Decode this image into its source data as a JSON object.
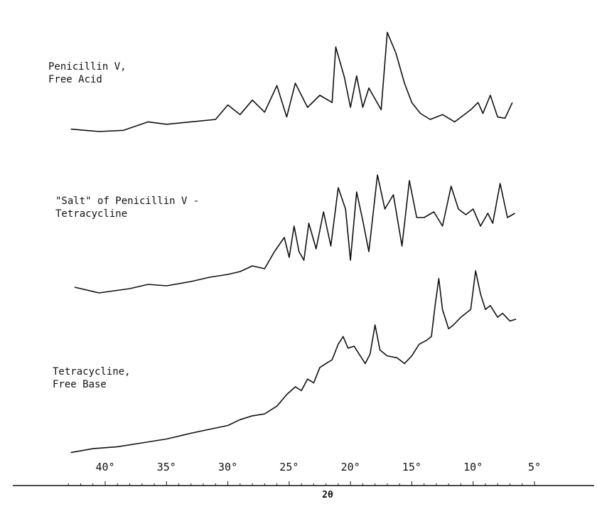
{
  "chart_data": {
    "type": "line",
    "title": "",
    "xlabel": "2θ",
    "ylabel": "",
    "xlim": [
      43,
      5
    ],
    "x_reversed": true,
    "x_ticks": [
      40,
      35,
      30,
      25,
      20,
      15,
      10,
      5
    ],
    "x_tick_labels": [
      "40°",
      "35°",
      "30°",
      "25°",
      "20°",
      "15°",
      "10°",
      "5°"
    ],
    "grid": false,
    "series": [
      {
        "name": "Penicillin V, Free Acid",
        "label_lines": [
          "Penicillin V,",
          "Free Acid"
        ],
        "points": [
          [
            42.8,
            2
          ],
          [
            40.5,
            0
          ],
          [
            38.5,
            1
          ],
          [
            36.5,
            8
          ],
          [
            35,
            6
          ],
          [
            33,
            8
          ],
          [
            31,
            10
          ],
          [
            30,
            22
          ],
          [
            29,
            14
          ],
          [
            28,
            26
          ],
          [
            27,
            16
          ],
          [
            26,
            38
          ],
          [
            25.2,
            12
          ],
          [
            24.5,
            40
          ],
          [
            23.5,
            20
          ],
          [
            22.5,
            30
          ],
          [
            21.5,
            24
          ],
          [
            21.2,
            70
          ],
          [
            20.5,
            45
          ],
          [
            20,
            20
          ],
          [
            19.5,
            46
          ],
          [
            19,
            20
          ],
          [
            18.5,
            36
          ],
          [
            17.5,
            18
          ],
          [
            17,
            82
          ],
          [
            16.3,
            65
          ],
          [
            15.6,
            40
          ],
          [
            15,
            24
          ],
          [
            14.3,
            15
          ],
          [
            13.5,
            10
          ],
          [
            12.5,
            14
          ],
          [
            11.5,
            8
          ],
          [
            10.2,
            18
          ],
          [
            9.6,
            24
          ],
          [
            9.2,
            15
          ],
          [
            8.6,
            30
          ],
          [
            8,
            12
          ],
          [
            7.4,
            11
          ],
          [
            6.8,
            24
          ]
        ]
      },
      {
        "name": "\"Salt\" of Penicillin V - Tetracycline",
        "label_lines": [
          "\"Salt\" of Penicillin V -",
          "Tetracycline"
        ],
        "points": [
          [
            42.5,
            5
          ],
          [
            40.5,
            1
          ],
          [
            38,
            4
          ],
          [
            36.5,
            7
          ],
          [
            35,
            6
          ],
          [
            33,
            9
          ],
          [
            31.5,
            12
          ],
          [
            30,
            14
          ],
          [
            29,
            16
          ],
          [
            28,
            20
          ],
          [
            27,
            18
          ],
          [
            26.2,
            30
          ],
          [
            25.4,
            40
          ],
          [
            25,
            26
          ],
          [
            24.6,
            48
          ],
          [
            24.2,
            30
          ],
          [
            23.8,
            24
          ],
          [
            23.4,
            50
          ],
          [
            22.8,
            32
          ],
          [
            22.2,
            58
          ],
          [
            21.6,
            34
          ],
          [
            21,
            75
          ],
          [
            20.4,
            60
          ],
          [
            20,
            24
          ],
          [
            19.5,
            72
          ],
          [
            19,
            52
          ],
          [
            18.5,
            30
          ],
          [
            17.8,
            84
          ],
          [
            17.2,
            60
          ],
          [
            16.5,
            70
          ],
          [
            15.8,
            34
          ],
          [
            15.2,
            80
          ],
          [
            14.6,
            54
          ],
          [
            14,
            54
          ],
          [
            13.2,
            58
          ],
          [
            12.5,
            48
          ],
          [
            11.8,
            76
          ],
          [
            11.2,
            60
          ],
          [
            10.6,
            56
          ],
          [
            10,
            60
          ],
          [
            9.4,
            48
          ],
          [
            8.8,
            57
          ],
          [
            8.4,
            50
          ],
          [
            7.8,
            78
          ],
          [
            7.2,
            54
          ],
          [
            6.6,
            57
          ]
        ]
      },
      {
        "name": "Tetracycline, Free Base",
        "label_lines": [
          "Tetracycline,",
          "Free Base"
        ],
        "points": [
          [
            42.8,
            2
          ],
          [
            41,
            4
          ],
          [
            39,
            5
          ],
          [
            37,
            7
          ],
          [
            35,
            9
          ],
          [
            33,
            12
          ],
          [
            31.5,
            14
          ],
          [
            30,
            16
          ],
          [
            29,
            19
          ],
          [
            28,
            21
          ],
          [
            27,
            22
          ],
          [
            26,
            26
          ],
          [
            25.2,
            32
          ],
          [
            24.5,
            36
          ],
          [
            24,
            34
          ],
          [
            23.5,
            40
          ],
          [
            23,
            38
          ],
          [
            22.5,
            46
          ],
          [
            22,
            48
          ],
          [
            21.5,
            50
          ],
          [
            21,
            58
          ],
          [
            20.6,
            62
          ],
          [
            20.2,
            56
          ],
          [
            19.7,
            57
          ],
          [
            19.2,
            52
          ],
          [
            18.8,
            48
          ],
          [
            18.4,
            53
          ],
          [
            18,
            68
          ],
          [
            17.6,
            55
          ],
          [
            17,
            52
          ],
          [
            16.2,
            51
          ],
          [
            15.6,
            48
          ],
          [
            15,
            52
          ],
          [
            14.4,
            58
          ],
          [
            13.8,
            60
          ],
          [
            13.4,
            62
          ],
          [
            13.1,
            78
          ],
          [
            12.8,
            92
          ],
          [
            12.5,
            76
          ],
          [
            12,
            66
          ],
          [
            11.6,
            68
          ],
          [
            11,
            72
          ],
          [
            10.6,
            74
          ],
          [
            10.2,
            76
          ],
          [
            9.8,
            96
          ],
          [
            9.4,
            84
          ],
          [
            9,
            76
          ],
          [
            8.6,
            78
          ],
          [
            8,
            72
          ],
          [
            7.6,
            74
          ],
          [
            7,
            70
          ],
          [
            6.5,
            71
          ]
        ]
      }
    ]
  }
}
